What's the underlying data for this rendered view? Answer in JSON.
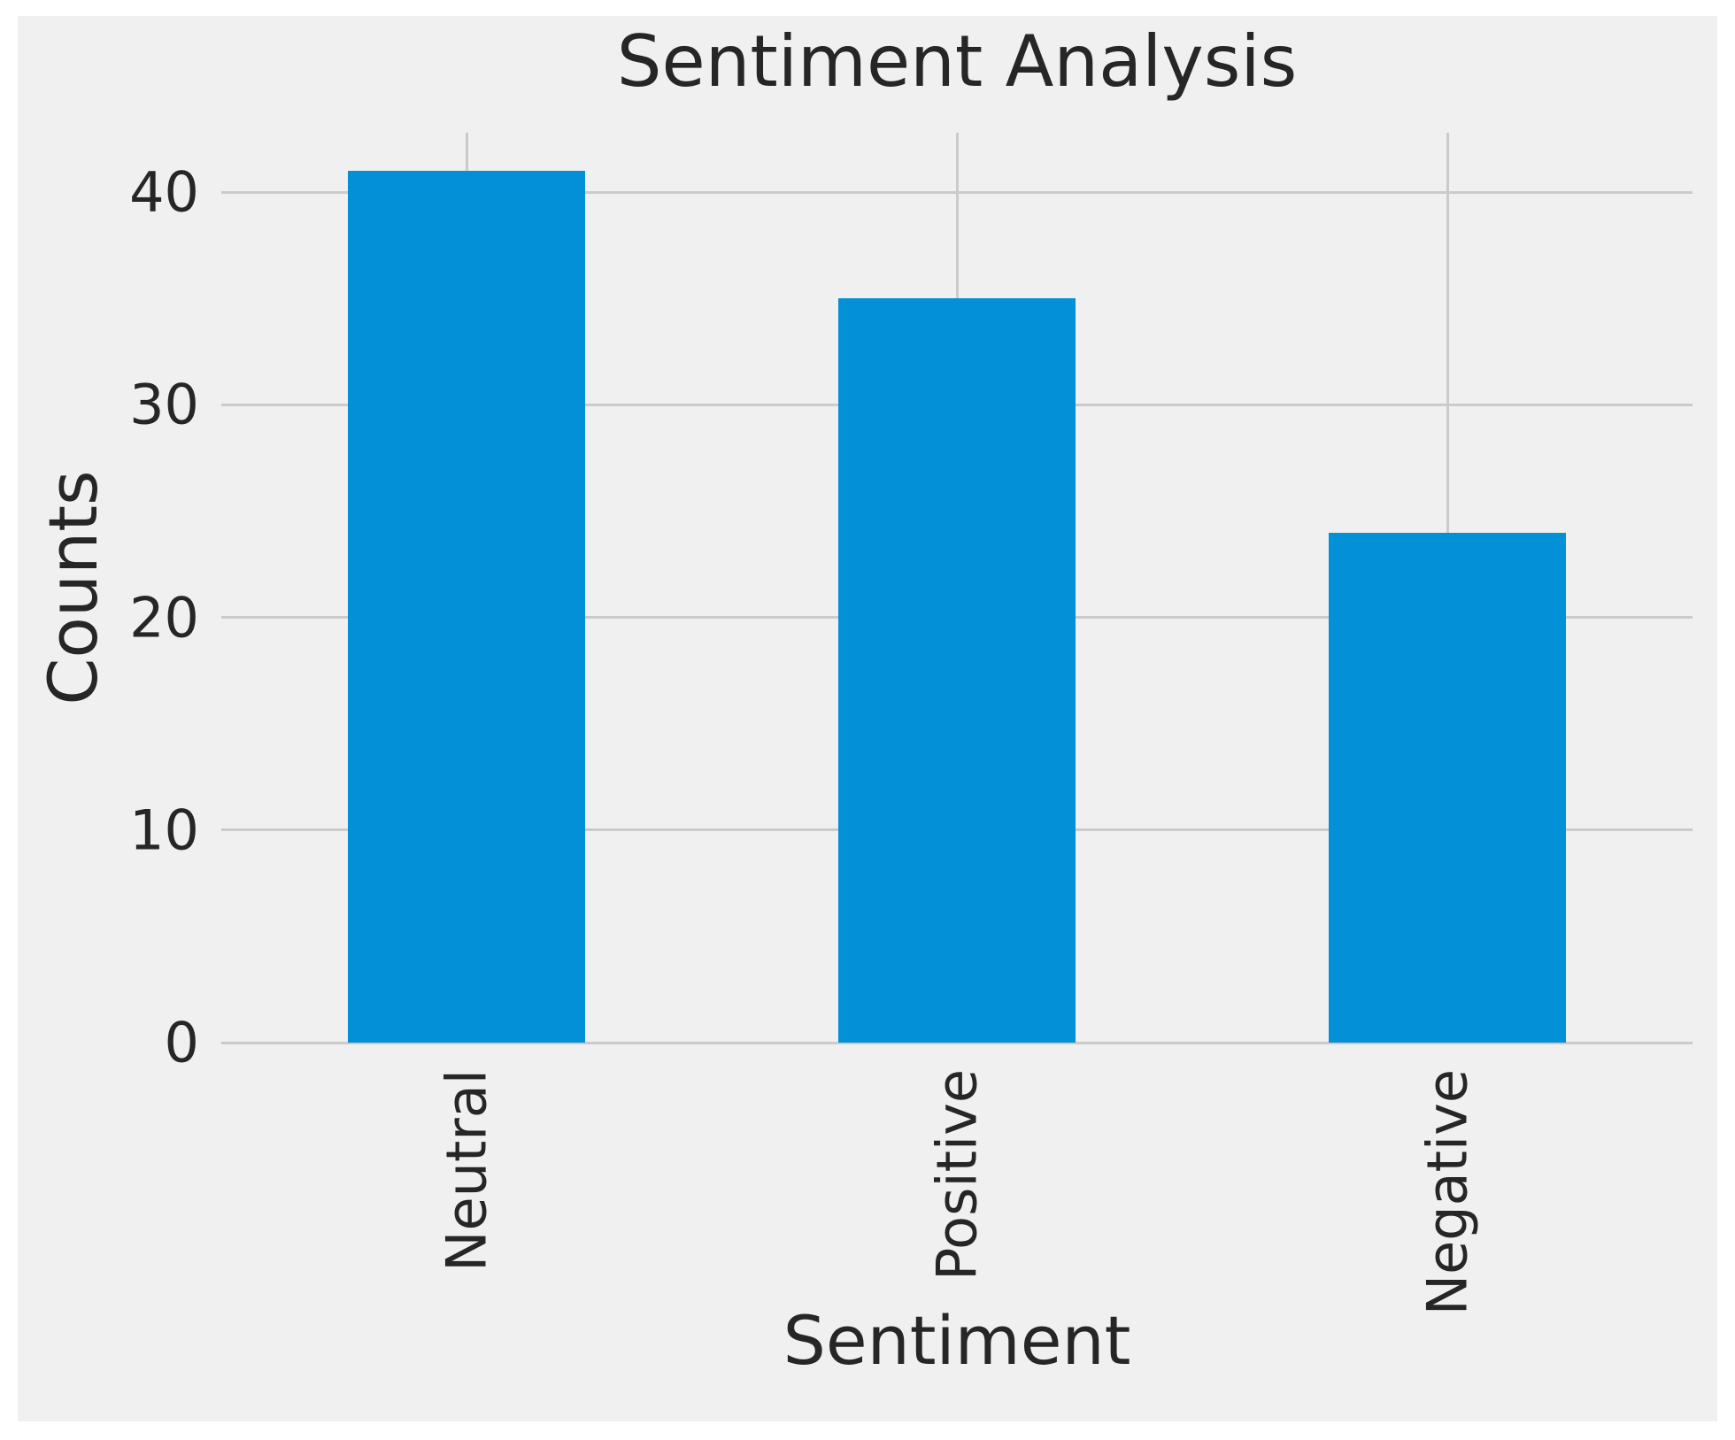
{
  "chart_data": {
    "type": "bar",
    "title": "Sentiment Analysis",
    "xlabel": "Sentiment",
    "ylabel": "Counts",
    "categories": [
      "Neutral",
      "Positive",
      "Negative"
    ],
    "values": [
      41,
      35,
      24
    ],
    "ytick_labels": [
      "0",
      "10",
      "20",
      "30",
      "40"
    ],
    "yticks": [
      0,
      10,
      20,
      30,
      40
    ],
    "ylim": [
      0,
      42.8
    ],
    "grid": true,
    "legend": false,
    "bar_color": "#0490d6",
    "background_color": "#f0f0f0",
    "grid_color": "#cbcbcb",
    "text_color": "#262626"
  }
}
